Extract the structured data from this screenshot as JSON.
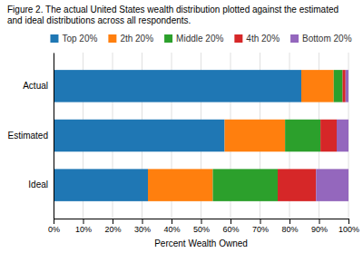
{
  "chart_data": {
    "type": "bar",
    "orientation": "horizontal",
    "stacked": true,
    "title": "Figure 2. The actual United States wealth distribution plotted against the estimated and ideal distributions across all respondents.",
    "xlabel": "Percent Wealth Owned",
    "categories": [
      "Actual",
      "Estimated",
      "Ideal"
    ],
    "series": [
      {
        "name": "Top 20%",
        "values": [
          84,
          58,
          32
        ]
      },
      {
        "name": "2th 20%",
        "values": [
          11,
          20.5,
          22
        ]
      },
      {
        "name": "Middle 20%",
        "values": [
          3,
          12,
          22
        ]
      },
      {
        "name": "4th 20%",
        "values": [
          1,
          5.5,
          13
        ]
      },
      {
        "name": "Bottom 20%",
        "values": [
          1,
          4,
          11
        ]
      }
    ],
    "xlim": [
      0,
      100
    ],
    "xticks": [
      {
        "value": 0,
        "label": "0%"
      },
      {
        "value": 10,
        "label": "10%"
      },
      {
        "value": 20,
        "label": "20%"
      },
      {
        "value": 30,
        "label": "30%"
      },
      {
        "value": 40,
        "label": "40%"
      },
      {
        "value": 50,
        "label": "50%"
      },
      {
        "value": 60,
        "label": "60%"
      },
      {
        "value": 70,
        "label": "70%"
      },
      {
        "value": 80,
        "label": "80%"
      },
      {
        "value": 90,
        "label": "90%"
      },
      {
        "value": 100,
        "label": "100%"
      }
    ],
    "grid": true,
    "legend": "top"
  }
}
